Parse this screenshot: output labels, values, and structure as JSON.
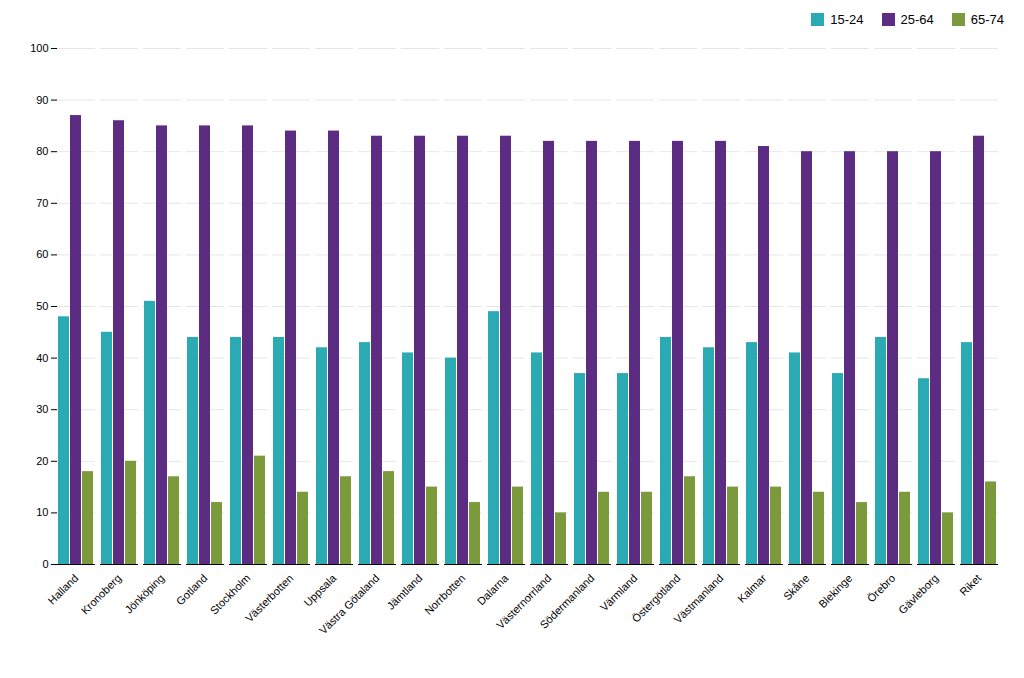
{
  "chart_data": {
    "type": "bar",
    "categories": [
      "Halland",
      "Kronoberg",
      "Jönköping",
      "Gotland",
      "Stockholm",
      "Västerbotten",
      "Uppsala",
      "Västra Götaland",
      "Jämtland",
      "Norrbotten",
      "Dalarna",
      "Västernorrland",
      "Södermanland",
      "Värmland",
      "Östergötland",
      "Västmanland",
      "Kalmar",
      "Skåne",
      "Blekinge",
      "Örebro",
      "Gävleborg",
      "Riket"
    ],
    "series": [
      {
        "name": "15-24",
        "color": "#2AABB3",
        "values": [
          48,
          45,
          51,
          44,
          44,
          44,
          42,
          43,
          41,
          40,
          49,
          41,
          37,
          37,
          44,
          42,
          43,
          41,
          37,
          44,
          36,
          43
        ]
      },
      {
        "name": "25-64",
        "color": "#5B2C82",
        "values": [
          87,
          86,
          85,
          85,
          85,
          84,
          84,
          83,
          83,
          83,
          83,
          82,
          82,
          82,
          82,
          82,
          81,
          80,
          80,
          80,
          80,
          83
        ]
      },
      {
        "name": "65-74",
        "color": "#7A9A3B",
        "values": [
          18,
          20,
          17,
          12,
          21,
          14,
          17,
          18,
          15,
          12,
          15,
          10,
          14,
          14,
          17,
          15,
          15,
          14,
          12,
          14,
          10,
          16
        ]
      }
    ],
    "ylim": [
      0,
      100
    ],
    "yticks": [
      0,
      10,
      20,
      30,
      40,
      50,
      60,
      70,
      80,
      90,
      100
    ],
    "grid": true,
    "legend": "upper right"
  }
}
